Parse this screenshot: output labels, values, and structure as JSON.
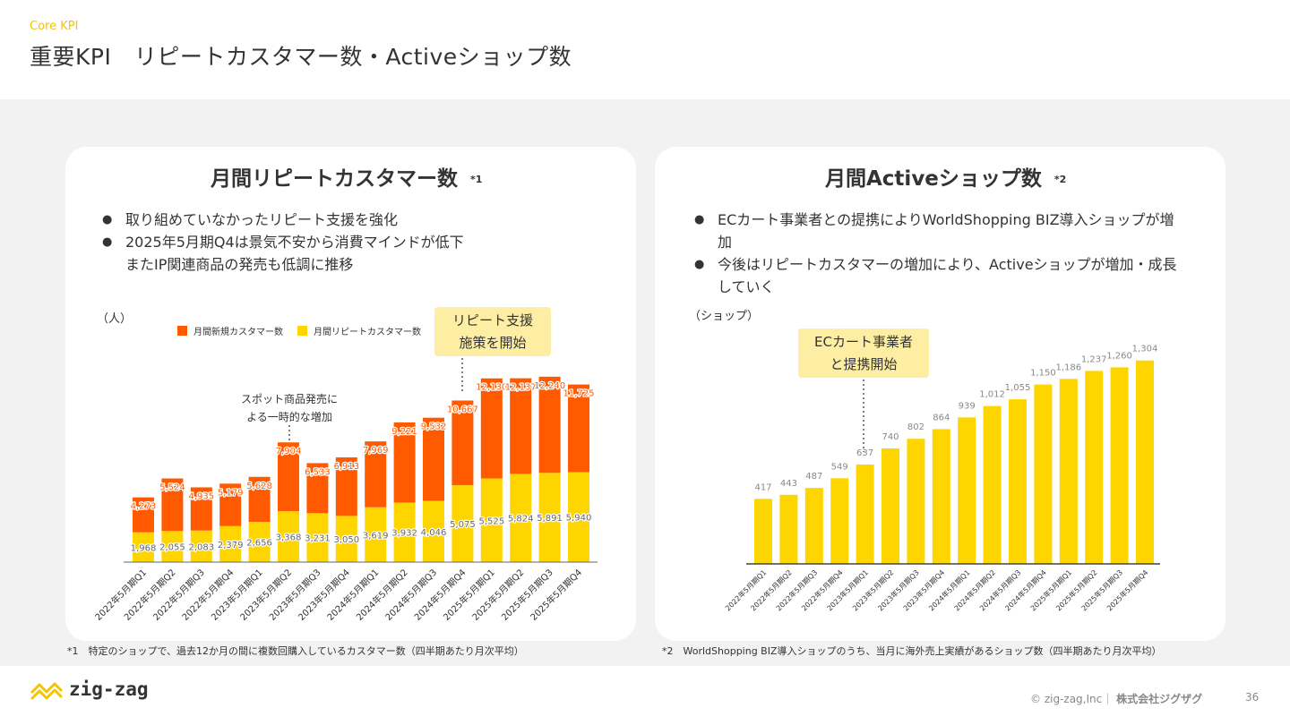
{
  "header": {
    "kicker": "Core KPI",
    "title": "重要KPI　リピートカスタマー数・Activeショップ数"
  },
  "left_card": {
    "title": "月間リピートカスタマー数",
    "title_note": "*1",
    "bullets": [
      "取り組めていなかったリピート支援を強化",
      "2025年5月期Q4は景気不安から消費マインドが低下\nまたIP関連商品の発売も低調に推移"
    ],
    "unit": "（人）",
    "callout": "リピート支援\n施策を開始",
    "annotation": "スポット商品発売に\nよる一時的な増加"
  },
  "right_card": {
    "title": "月間Activeショップ数",
    "title_note": "*2",
    "bullets": [
      "ECカート事業者との提携によりWorldShopping BIZ導入ショップが増加",
      "今後はリピートカスタマーの増加により、Activeショップが増加・成長していく"
    ],
    "unit": "（ショップ）",
    "callout": "ECカート事業者\nと提携開始"
  },
  "chart_data": [
    {
      "type": "bar",
      "stacked": true,
      "categories": [
        "2022年5月期Q1",
        "2022年5月期Q2",
        "2022年5月期Q3",
        "2022年5月期Q4",
        "2023年5月期Q1",
        "2023年5月期Q2",
        "2023年5月期Q3",
        "2023年5月期Q4",
        "2024年5月期Q1",
        "2024年5月期Q2",
        "2024年5月期Q3",
        "2024年5月期Q4",
        "2025年5月期Q1",
        "2025年5月期Q2",
        "2025年5月期Q3",
        "2025年5月期Q4"
      ],
      "series": [
        {
          "name": "月間リピートカスタマー数",
          "color": "#ffd500",
          "values": [
            1968,
            2055,
            2083,
            2379,
            2656,
            3368,
            3231,
            3050,
            3619,
            3932,
            4046,
            5075,
            5525,
            5824,
            5891,
            5940
          ]
        },
        {
          "name": "月間新規カスタマー数",
          "color": "#ff5a00",
          "values": [
            2305,
            3469,
            2852,
            2800,
            2972,
            4536,
            3302,
            3863,
            4350,
            5289,
            5486,
            5592,
            6605,
            6313,
            6349,
            5785
          ]
        }
      ],
      "totals": [
        4273,
        5524,
        4935,
        5179,
        5628,
        7904,
        6533,
        6913,
        7969,
        9221,
        9532,
        10667,
        12130,
        12137,
        12240,
        11725
      ],
      "legend": [
        "月間新規カスタマー数",
        "月間リピートカスタマー数"
      ],
      "legend_position": "top",
      "ylim": [
        0,
        13000
      ],
      "grid": false
    },
    {
      "type": "bar",
      "categories": [
        "2022年5月期Q1",
        "2022年5月期Q2",
        "2022年5月期Q3",
        "2022年5月期Q4",
        "2023年5月期Q1",
        "2023年5月期Q2",
        "2023年5月期Q3",
        "2023年5月期Q4",
        "2024年5月期Q1",
        "2024年5月期Q2",
        "2024年5月期Q3",
        "2024年5月期Q4",
        "2025年5月期Q1",
        "2025年5月期Q2",
        "2025年5月期Q3",
        "2025年5月期Q4"
      ],
      "series": [
        {
          "color": "#ffd500",
          "values": [
            417,
            443,
            487,
            549,
            637,
            740,
            802,
            864,
            939,
            1012,
            1055,
            1150,
            1186,
            1237,
            1260,
            1304
          ]
        }
      ],
      "ylim": [
        0,
        1400
      ],
      "grid": false
    }
  ],
  "footnotes": {
    "left": "*1　特定のショップで、過去12か月の間に複数回購入しているカスタマー数（四半期あたり月次平均）",
    "right": "*2　WorldShopping BIZ導入ショップのうち、当月に海外売上実績があるショップ数（四半期あたり月次平均）"
  },
  "footer": {
    "logo_text": "zig-zag",
    "copyright": "© zig-zag,Inc｜",
    "company": "株式会社ジグザグ",
    "page_number": "36"
  },
  "colors": {
    "accent": "#ffd500",
    "orange": "#ff5a00",
    "callout_bg": "#fdeea3"
  }
}
